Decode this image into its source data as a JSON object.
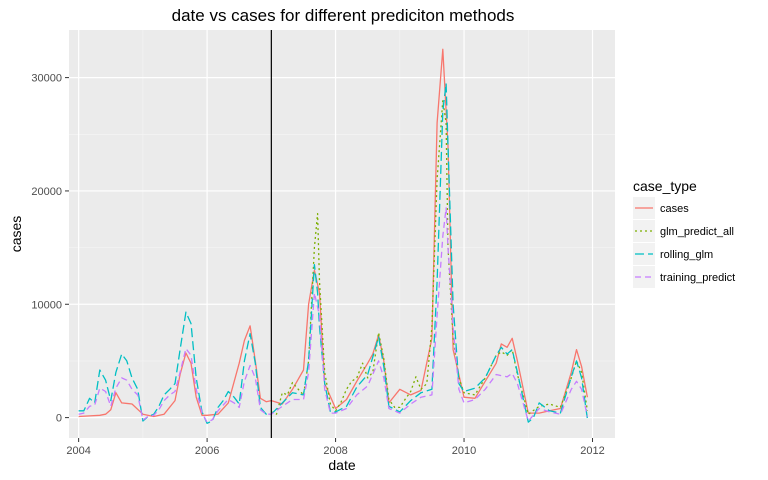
{
  "chart_data": {
    "type": "line",
    "title": "date vs cases for different prediciton methods",
    "xlabel": "date",
    "ylabel": "cases",
    "xlim": [
      2003.85,
      2012.35
    ],
    "ylim": [
      -1800,
      34200
    ],
    "x_ticks": [
      2004,
      2006,
      2008,
      2010,
      2012
    ],
    "x_tick_labels": [
      "2004",
      "2006",
      "2008",
      "2010",
      "2012"
    ],
    "y_ticks": [
      0,
      10000,
      20000,
      30000
    ],
    "y_tick_labels": [
      "0",
      "10000",
      "20000",
      "30000"
    ],
    "grid": true,
    "vline": 2007.0,
    "legend": {
      "title": "case_type",
      "position": "right",
      "entries": [
        "cases",
        "glm_predict_all",
        "rolling_glm",
        "training_predict"
      ]
    },
    "series": [
      {
        "name": "cases",
        "color": "#F8766D",
        "dash": "",
        "x": [
          2004.0,
          2004.17,
          2004.33,
          2004.42,
          2004.5,
          2004.58,
          2004.67,
          2004.83,
          2005.0,
          2005.17,
          2005.33,
          2005.5,
          2005.58,
          2005.67,
          2005.75,
          2005.83,
          2005.92,
          2006.0,
          2006.17,
          2006.33,
          2006.5,
          2006.58,
          2006.67,
          2006.75,
          2006.83,
          2006.92,
          2007.0,
          2007.17,
          2007.33,
          2007.5,
          2007.58,
          2007.67,
          2007.75,
          2007.83,
          2008.0,
          2008.17,
          2008.33,
          2008.5,
          2008.58,
          2008.67,
          2008.75,
          2008.83,
          2009.0,
          2009.17,
          2009.33,
          2009.5,
          2009.58,
          2009.67,
          2009.75,
          2009.83,
          2010.0,
          2010.17,
          2010.33,
          2010.5,
          2010.58,
          2010.67,
          2010.75,
          2010.83,
          2011.0,
          2011.17,
          2011.33,
          2011.5,
          2011.67,
          2011.75,
          2011.83,
          2011.92
        ],
        "y": [
          100,
          150,
          200,
          300,
          700,
          2200,
          1300,
          1200,
          300,
          100,
          300,
          1500,
          3800,
          5700,
          4800,
          1800,
          200,
          200,
          300,
          1300,
          4800,
          6800,
          8100,
          5000,
          1700,
          1400,
          1500,
          1200,
          2500,
          4200,
          10000,
          13000,
          11000,
          3000,
          800,
          1600,
          3200,
          4800,
          5600,
          7300,
          5000,
          1300,
          2500,
          2000,
          2400,
          7000,
          26000,
          32500,
          24000,
          6000,
          1800,
          1700,
          3200,
          4800,
          6500,
          6200,
          7000,
          5000,
          400,
          400,
          600,
          800,
          4000,
          6000,
          4500,
          1800
        ]
      },
      {
        "name": "glm_predict_all",
        "color": "#7CAE00",
        "dash": "2,3",
        "x": [
          2007.0,
          2007.08,
          2007.17,
          2007.25,
          2007.33,
          2007.42,
          2007.5,
          2007.58,
          2007.67,
          2007.72,
          2007.75,
          2007.83,
          2007.92,
          2008.0,
          2008.08,
          2008.17,
          2008.25,
          2008.33,
          2008.42,
          2008.5,
          2008.58,
          2008.67,
          2008.75,
          2008.83,
          2008.92,
          2009.0,
          2009.08,
          2009.17,
          2009.25,
          2009.33,
          2009.42,
          2009.5,
          2009.58,
          2009.67,
          2009.72,
          2009.75,
          2009.83,
          2009.92,
          2010.0,
          2010.17,
          2010.33,
          2010.5,
          2010.58,
          2010.67,
          2010.75,
          2010.83,
          2010.92,
          2011.0,
          2011.17,
          2011.33,
          2011.5,
          2011.67,
          2011.75,
          2011.83,
          2011.92
        ],
        "y": [
          500,
          300,
          2200,
          2000,
          3100,
          2500,
          2000,
          5000,
          15000,
          18000,
          12000,
          4000,
          1200,
          600,
          1300,
          2500,
          3200,
          3500,
          4800,
          3500,
          4000,
          7500,
          5200,
          1600,
          900,
          900,
          1600,
          2300,
          3600,
          2500,
          3000,
          8000,
          21000,
          28000,
          26000,
          15000,
          7000,
          3500,
          2200,
          2000,
          3500,
          5500,
          5800,
          5500,
          6000,
          3800,
          2000,
          300,
          1000,
          1200,
          900,
          3500,
          5000,
          4000,
          600
        ]
      },
      {
        "name": "rolling_glm",
        "color": "#00BFC4",
        "dash": "9,4",
        "x": [
          2004.0,
          2004.08,
          2004.17,
          2004.25,
          2004.33,
          2004.42,
          2004.5,
          2004.58,
          2004.67,
          2004.75,
          2004.83,
          2004.92,
          2005.0,
          2005.08,
          2005.17,
          2005.25,
          2005.33,
          2005.42,
          2005.5,
          2005.58,
          2005.67,
          2005.75,
          2005.83,
          2005.92,
          2006.0,
          2006.08,
          2006.17,
          2006.25,
          2006.33,
          2006.42,
          2006.5,
          2006.58,
          2006.67,
          2006.75,
          2006.83,
          2006.92,
          2007.0,
          2007.17,
          2007.33,
          2007.5,
          2007.58,
          2007.67,
          2007.72,
          2007.75,
          2007.83,
          2007.92,
          2008.0,
          2008.17,
          2008.33,
          2008.5,
          2008.67,
          2008.75,
          2008.83,
          2009.0,
          2009.17,
          2009.33,
          2009.5,
          2009.58,
          2009.67,
          2009.72,
          2009.75,
          2009.83,
          2009.92,
          2010.0,
          2010.17,
          2010.33,
          2010.5,
          2010.58,
          2010.67,
          2010.75,
          2010.83,
          2011.0,
          2011.08,
          2011.17,
          2011.33,
          2011.5,
          2011.67,
          2011.75,
          2011.83,
          2011.92
        ],
        "y": [
          600,
          600,
          1700,
          1300,
          4200,
          3300,
          1500,
          4000,
          5600,
          5000,
          3500,
          2500,
          -300,
          100,
          300,
          1000,
          2000,
          2500,
          3000,
          6000,
          9300,
          8300,
          3500,
          500,
          -500,
          -300,
          900,
          1500,
          2300,
          1800,
          1200,
          5000,
          7400,
          4800,
          900,
          300,
          300,
          1300,
          2200,
          2000,
          5000,
          13500,
          11000,
          8000,
          3000,
          500,
          500,
          1000,
          2700,
          3800,
          7100,
          4500,
          1000,
          500,
          1500,
          2200,
          2500,
          12000,
          27000,
          29500,
          24000,
          10000,
          3000,
          2300,
          2600,
          3500,
          5500,
          6200,
          5600,
          6000,
          4000,
          -400,
          0,
          1300,
          600,
          400,
          3600,
          5000,
          3500,
          -100
        ]
      },
      {
        "name": "training_predict",
        "color": "#C77CFF",
        "dash": "6,4",
        "x": [
          2004.0,
          2004.08,
          2004.17,
          2004.25,
          2004.33,
          2004.42,
          2004.5,
          2004.58,
          2004.67,
          2004.75,
          2004.83,
          2004.92,
          2005.0,
          2005.08,
          2005.17,
          2005.25,
          2005.33,
          2005.42,
          2005.5,
          2005.58,
          2005.67,
          2005.75,
          2005.83,
          2005.92,
          2006.0,
          2006.08,
          2006.17,
          2006.25,
          2006.33,
          2006.42,
          2006.5,
          2006.58,
          2006.67,
          2006.75,
          2006.83,
          2006.92,
          2007.0,
          2007.17,
          2007.33,
          2007.5,
          2007.58,
          2007.67,
          2007.75,
          2007.83,
          2007.92,
          2008.0,
          2008.17,
          2008.33,
          2008.5,
          2008.67,
          2008.75,
          2008.83,
          2009.0,
          2009.17,
          2009.33,
          2009.5,
          2009.58,
          2009.67,
          2009.72,
          2009.75,
          2009.83,
          2009.92,
          2010.0,
          2010.17,
          2010.33,
          2010.5,
          2010.58,
          2010.67,
          2010.75,
          2010.83,
          2011.0,
          2011.17,
          2011.33,
          2011.5,
          2011.67,
          2011.75,
          2011.83,
          2011.92
        ],
        "y": [
          300,
          400,
          1000,
          1100,
          2600,
          2300,
          1000,
          2600,
          3500,
          3300,
          2500,
          2000,
          -200,
          100,
          200,
          700,
          1500,
          2000,
          2300,
          4000,
          6100,
          5500,
          2500,
          400,
          -400,
          -200,
          600,
          1100,
          1600,
          1300,
          900,
          3200,
          4600,
          3500,
          700,
          300,
          300,
          1000,
          1600,
          1600,
          4000,
          11000,
          9000,
          2500,
          400,
          400,
          800,
          2000,
          2800,
          5000,
          3500,
          800,
          400,
          1200,
          1800,
          2000,
          9000,
          16000,
          18500,
          15000,
          8000,
          2500,
          1300,
          1600,
          2500,
          3800,
          3700,
          3600,
          3900,
          3000,
          -300,
          800,
          500,
          300,
          2500,
          3200,
          2500,
          100
        ]
      }
    ]
  }
}
